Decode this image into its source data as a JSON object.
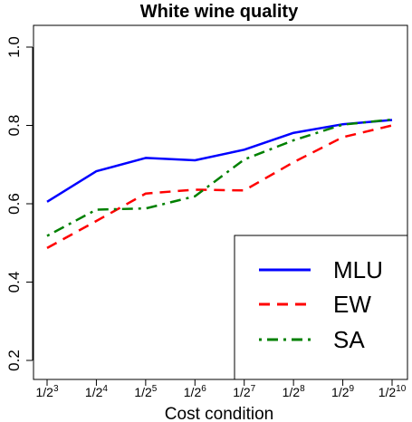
{
  "chart_data": {
    "type": "line",
    "title": "White wine quality",
    "xlabel": "Cost condition",
    "ylabel": "",
    "categories": [
      "1/2^3",
      "1/2^4",
      "1/2^5",
      "1/2^6",
      "1/2^7",
      "1/2^8",
      "1/2^9",
      "1/2^10"
    ],
    "x_ticks": [
      {
        "base": "1/2",
        "exp": "3"
      },
      {
        "base": "1/2",
        "exp": "4"
      },
      {
        "base": "1/2",
        "exp": "5"
      },
      {
        "base": "1/2",
        "exp": "6"
      },
      {
        "base": "1/2",
        "exp": "7"
      },
      {
        "base": "1/2",
        "exp": "8"
      },
      {
        "base": "1/2",
        "exp": "9"
      },
      {
        "base": "1/2",
        "exp": "10"
      }
    ],
    "ylim": [
      0.2,
      1.0
    ],
    "yticks": [
      "0.2",
      "0.4",
      "0.6",
      "0.8",
      "1.0"
    ],
    "grid": false,
    "legend_position": "bottom-right",
    "series": [
      {
        "name": "MLU",
        "color": "#0000ff",
        "dash": "solid",
        "values": [
          0.605,
          0.683,
          0.717,
          0.711,
          0.738,
          0.781,
          0.803,
          0.814
        ]
      },
      {
        "name": "EW",
        "color": "#ff0000",
        "dash": "dashed",
        "values": [
          0.487,
          0.556,
          0.626,
          0.636,
          0.634,
          0.706,
          0.77,
          0.8
        ]
      },
      {
        "name": "SA",
        "color": "#008000",
        "dash": "dotdash",
        "values": [
          0.518,
          0.585,
          0.588,
          0.619,
          0.713,
          0.762,
          0.802,
          0.815
        ]
      }
    ]
  }
}
